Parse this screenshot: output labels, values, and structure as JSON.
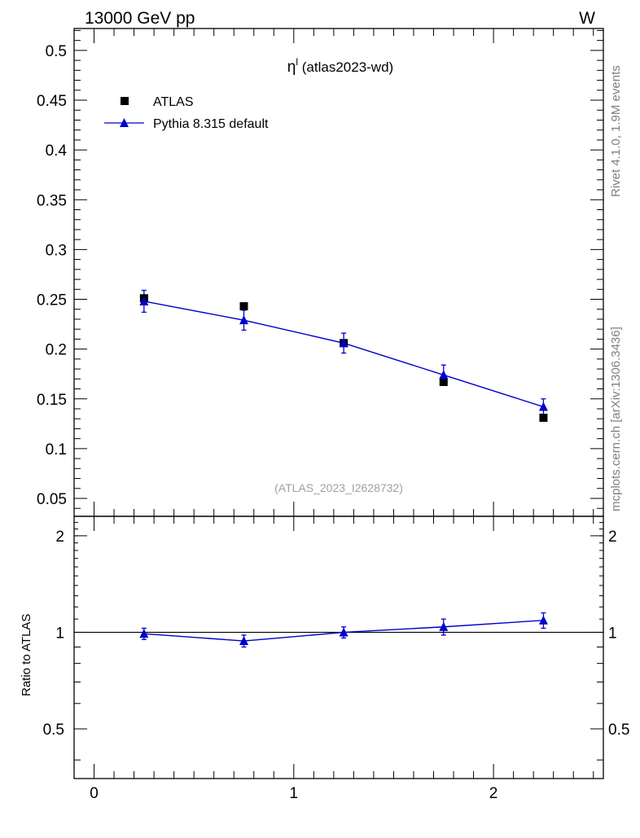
{
  "header": {
    "energy": "13000 GeV pp",
    "process": "W"
  },
  "side_labels": {
    "rivet": "Rivet 4.1.0,  1.9M events",
    "mcplots": "mcplots.cern.ch [arXiv:1306.3436]"
  },
  "chart_data": [
    {
      "type": "scatter",
      "title_symbol": "η",
      "title_sup": "l",
      "title_rest": " (atlas2023-wd)",
      "watermark": "(ATLAS_2023_I2628732)",
      "xlim": [
        -0.1,
        2.55
      ],
      "ylim": [
        0.032,
        0.522
      ],
      "yticks": [
        0.05,
        0.1,
        0.15,
        0.2,
        0.25,
        0.3,
        0.35,
        0.4,
        0.45,
        0.5
      ],
      "ytick_labels": [
        "0.05",
        "0.1",
        "0.15",
        "0.2",
        "0.25",
        "0.3",
        "0.35",
        "0.4",
        "0.45",
        "0.5"
      ],
      "legend": [
        {
          "label": "ATLAS",
          "marker": "square",
          "color": "#000000"
        },
        {
          "label": "Pythia 8.315 default",
          "marker": "triangle",
          "color": "#0000cc"
        }
      ],
      "series": [
        {
          "name": "ATLAS",
          "x": [
            0.25,
            0.75,
            1.25,
            1.75,
            2.25
          ],
          "y": [
            0.251,
            0.243,
            0.206,
            0.167,
            0.131
          ]
        },
        {
          "name": "Pythia 8.315 default",
          "x": [
            0.25,
            0.75,
            1.25,
            1.75,
            2.25
          ],
          "y": [
            0.248,
            0.229,
            0.206,
            0.174,
            0.142
          ],
          "err": [
            0.011,
            0.01,
            0.01,
            0.01,
            0.008
          ]
        }
      ]
    },
    {
      "type": "scatter",
      "ylabel": "Ratio to ATLAS",
      "xlim": [
        -0.1,
        2.55
      ],
      "ylim": [
        0.35,
        2.3
      ],
      "yticks": [
        0.5,
        1,
        2
      ],
      "ytick_labels": [
        "0.5",
        "1",
        "2"
      ],
      "xticks": [
        0,
        1,
        2
      ],
      "xtick_labels": [
        "0",
        "1",
        "2"
      ],
      "reference_line": 1,
      "series": [
        {
          "name": "Pythia 8.315 default",
          "x": [
            0.25,
            0.75,
            1.25,
            1.75,
            2.25
          ],
          "y": [
            0.99,
            0.94,
            1.0,
            1.04,
            1.09
          ],
          "err": [
            0.04,
            0.04,
            0.04,
            0.06,
            0.06
          ]
        }
      ]
    }
  ]
}
